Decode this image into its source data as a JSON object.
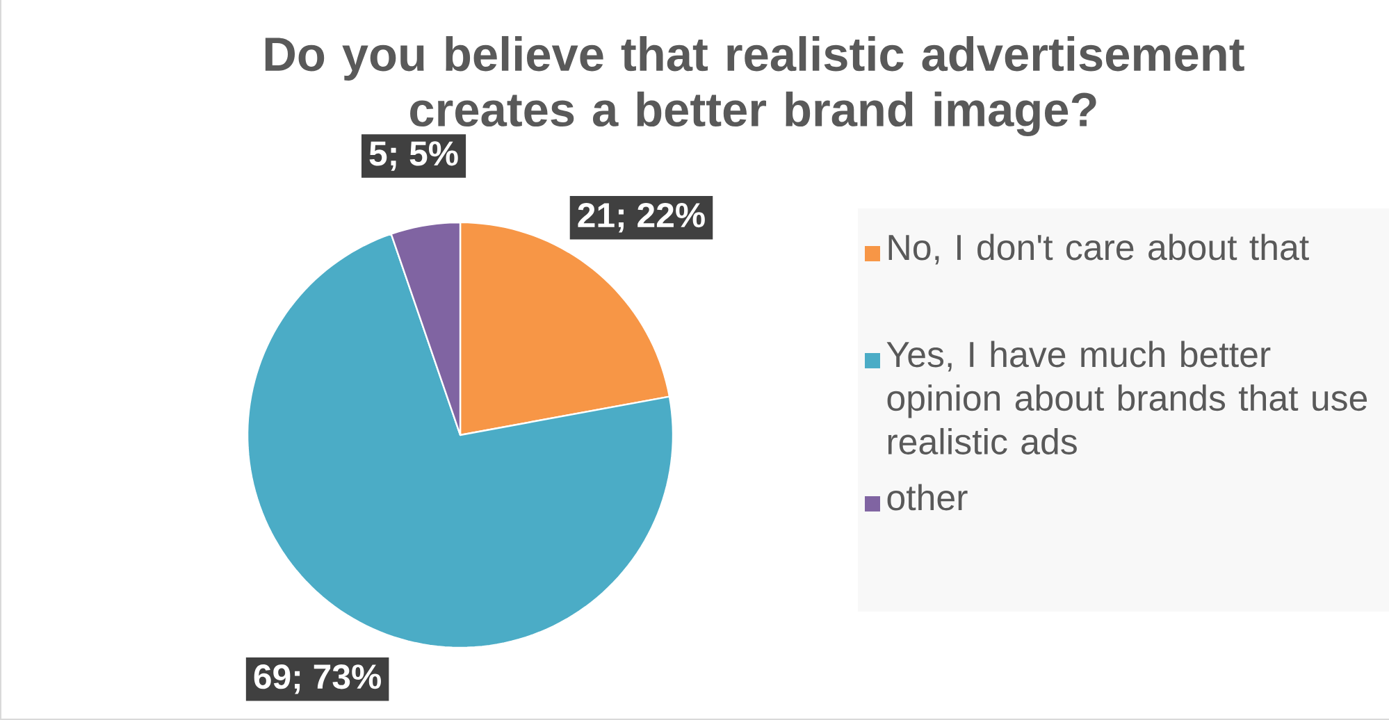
{
  "chart_data": {
    "type": "pie",
    "title": "Do you believe that realistic advertisement creates a better brand image?",
    "categories": [
      "No, I don't care about that",
      "Yes, I have much better opinion about brands that use realistic ads",
      "other"
    ],
    "values": [
      21,
      69,
      5
    ],
    "colors": [
      "#f79646",
      "#4bacc6",
      "#8064a2"
    ],
    "value_labels": [
      "21; 22%",
      "69; 73%",
      "5; 5%"
    ],
    "legend": "right"
  }
}
